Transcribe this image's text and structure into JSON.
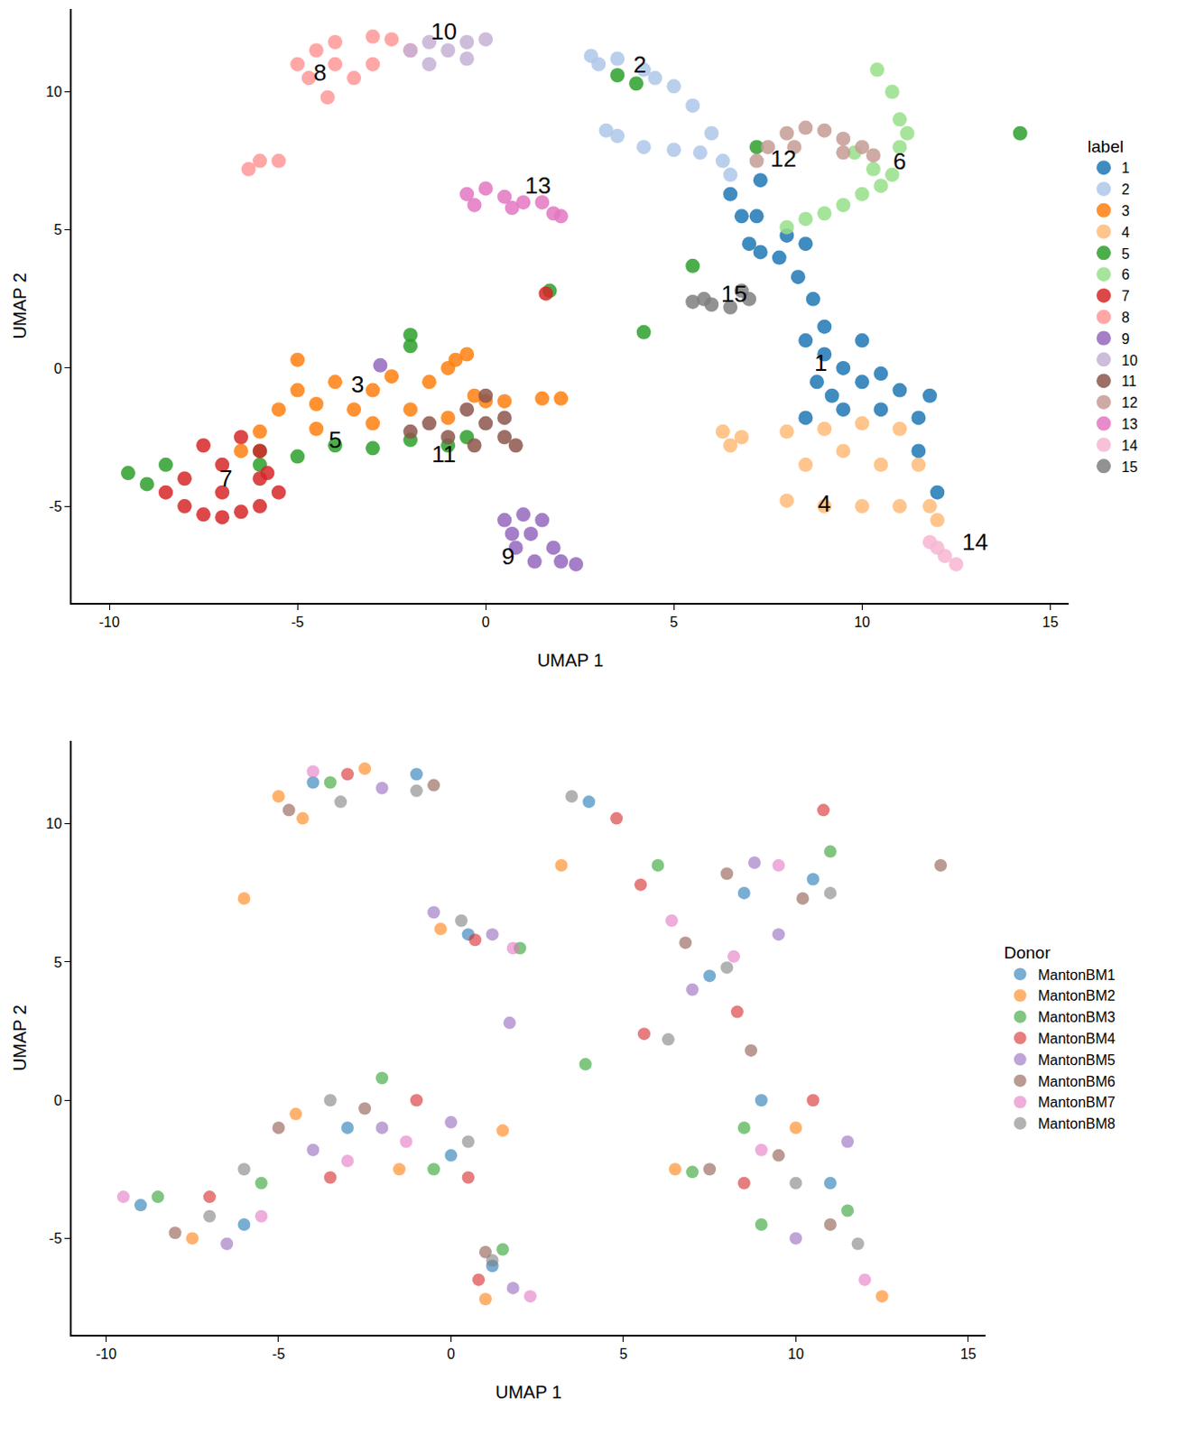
{
  "chart_data": [
    {
      "type": "scatter",
      "x_label": "UMAP 1",
      "y_label": "UMAP 2",
      "legend_title": "label",
      "legend": "right",
      "grid": false,
      "xlim": [
        -11,
        15.5
      ],
      "ylim": [
        -8.5,
        13
      ],
      "xticks": [
        -10,
        -5,
        0,
        5,
        10,
        15
      ],
      "yticks": [
        -5,
        0,
        5,
        10
      ],
      "series": [
        {
          "name": "1",
          "color": "#1f77b4",
          "x": [
            8.5,
            9,
            9.5,
            10,
            11,
            11.8,
            8.8,
            9.5,
            10.5,
            11.5,
            8.5,
            10,
            9,
            8.7,
            8.3,
            7.8,
            7.3,
            7,
            8,
            8.5,
            6.8,
            6.5,
            7.3,
            7.2,
            11.5,
            12,
            10.5,
            9.2
          ],
          "y": [
            1,
            0.5,
            0,
            -0.5,
            -0.8,
            -1,
            -0.5,
            -1.5,
            -1.5,
            -1.8,
            -1.8,
            1,
            1.5,
            2.5,
            3.3,
            4,
            4.2,
            4.5,
            4.8,
            4.5,
            5.5,
            6.3,
            6.8,
            5.5,
            -3,
            -4.5,
            -0.2,
            -1
          ]
        },
        {
          "name": "2",
          "color": "#aec7e8",
          "x": [
            3,
            3.5,
            4.2,
            5,
            5.5,
            6,
            6.3,
            3.5,
            4.2,
            5,
            5.7,
            3.2,
            4.5,
            2.8,
            6.5
          ],
          "y": [
            11,
            11.2,
            10.8,
            10.2,
            9.5,
            8.5,
            7.5,
            8.4,
            8,
            7.9,
            7.8,
            8.6,
            10.5,
            11.3,
            7
          ]
        },
        {
          "name": "3",
          "color": "#ff7f0e",
          "x": [
            -6,
            -5.5,
            -5,
            -5,
            -4.5,
            -4,
            -3.5,
            -3,
            -2.5,
            -2,
            -1.5,
            -1,
            -0.5,
            -0.3,
            0,
            0.5,
            1.5,
            2,
            -1,
            -3,
            -4.5,
            -6.5,
            -0.8
          ],
          "y": [
            -2.3,
            -1.5,
            -0.8,
            0.3,
            -1.3,
            -0.5,
            -1.5,
            -0.8,
            -0.3,
            -1.5,
            -0.5,
            0,
            0.5,
            -1,
            -1.2,
            -1.2,
            -1.1,
            -1.1,
            -1.8,
            -2,
            -2.2,
            -3,
            0.3
          ]
        },
        {
          "name": "4",
          "color": "#ffbb78",
          "x": [
            8,
            9,
            10,
            11,
            11.8,
            8.5,
            9.5,
            10.5,
            11.5,
            8,
            9,
            10,
            11,
            12,
            6.3,
            6.8,
            6.5
          ],
          "y": [
            -4.8,
            -5,
            -5,
            -5,
            -5,
            -3.5,
            -3,
            -3.5,
            -3.5,
            -2.3,
            -2.2,
            -2,
            -2.2,
            -5.5,
            -2.3,
            -2.5,
            -2.8
          ]
        },
        {
          "name": "5",
          "color": "#2ca02c",
          "x": [
            -9.5,
            -8.5,
            -6,
            -5,
            -4,
            -3,
            -2,
            -1,
            -0.5,
            -2,
            -2,
            3.5,
            4,
            4.2,
            7.2,
            5.5,
            14.2,
            1.7,
            -6,
            -9
          ],
          "y": [
            -3.8,
            -3.5,
            -3,
            -3.2,
            -2.8,
            -2.9,
            -2.6,
            -2.8,
            -2.5,
            0.8,
            1.2,
            10.6,
            10.3,
            1.3,
            8,
            3.7,
            8.5,
            2.8,
            -3.5,
            -4.2
          ]
        },
        {
          "name": "6",
          "color": "#98df8a",
          "x": [
            8,
            9,
            10,
            10.8,
            11,
            11,
            10.8,
            10.4,
            9.5,
            10.5,
            11.2,
            8.5,
            9.8,
            10.3
          ],
          "y": [
            5.1,
            5.6,
            6.3,
            7,
            8,
            9,
            10,
            10.8,
            5.9,
            6.6,
            8.5,
            5.4,
            7.8,
            7.2
          ]
        },
        {
          "name": "7",
          "color": "#d62728",
          "x": [
            -8.5,
            -8,
            -7.5,
            -7,
            -6.5,
            -6,
            -5.5,
            -6,
            -7,
            -7,
            -6.5,
            -6,
            -8,
            -7.5,
            -5.8,
            1.6
          ],
          "y": [
            -4.5,
            -5,
            -5.3,
            -5.4,
            -5.2,
            -5,
            -4.5,
            -4,
            -4.5,
            -3.5,
            -2.5,
            -3,
            -4,
            -2.8,
            -3.8,
            2.7
          ]
        },
        {
          "name": "8",
          "color": "#ff9896",
          "x": [
            -5,
            -4.5,
            -4,
            -3,
            -2.5,
            -4.7,
            -4.2,
            -3.5,
            -3,
            -2,
            -4,
            -6.3,
            -6,
            -5.5
          ],
          "y": [
            11,
            11.5,
            11.8,
            12,
            11.9,
            10.5,
            9.8,
            10.5,
            11,
            11.5,
            11,
            7.2,
            7.5,
            7.5
          ]
        },
        {
          "name": "9",
          "color": "#9467bd",
          "x": [
            0.5,
            1,
            1.5,
            1.2,
            0.8,
            1.3,
            1.8,
            2,
            2.4,
            0.7,
            -2.8
          ],
          "y": [
            -5.5,
            -5.3,
            -5.5,
            -6,
            -6.5,
            -7,
            -6.5,
            -7,
            -7.1,
            -6,
            0.1
          ]
        },
        {
          "name": "10",
          "color": "#c5b0d5",
          "x": [
            -1.5,
            -1,
            -0.5,
            0,
            -1.5,
            -2,
            -0.5
          ],
          "y": [
            11.8,
            11.5,
            11.8,
            11.9,
            11,
            11.5,
            11.2
          ]
        },
        {
          "name": "11",
          "color": "#8c564b",
          "x": [
            -2,
            -1.5,
            -1,
            -0.5,
            0,
            0.5,
            0.8,
            0,
            -0.3,
            0.5
          ],
          "y": [
            -2.3,
            -2,
            -2.5,
            -1.5,
            -2,
            -2.5,
            -2.8,
            -1,
            -2.8,
            -1.8
          ]
        },
        {
          "name": "12",
          "color": "#c49c94",
          "x": [
            7.5,
            8,
            8.5,
            9,
            9.5,
            10,
            10.3,
            8.2,
            9.5,
            7.2
          ],
          "y": [
            8,
            8.5,
            8.7,
            8.6,
            8.3,
            8,
            7.7,
            8,
            7.8,
            7.5
          ]
        },
        {
          "name": "13",
          "color": "#e377c2",
          "x": [
            -0.5,
            0,
            0.5,
            1,
            1.5,
            -0.3,
            0.7,
            2,
            1.8
          ],
          "y": [
            6.3,
            6.5,
            6.2,
            6,
            6,
            5.9,
            5.8,
            5.5,
            5.6
          ]
        },
        {
          "name": "14",
          "color": "#f7b6d2",
          "x": [
            11.8,
            12.2,
            12.5,
            12
          ],
          "y": [
            -6.3,
            -6.8,
            -7.1,
            -6.5
          ]
        },
        {
          "name": "15",
          "color": "#7f7f7f",
          "x": [
            5.5,
            6,
            6.5,
            7,
            6.8,
            5.8
          ],
          "y": [
            2.4,
            2.3,
            2.2,
            2.5,
            2.8,
            2.5
          ]
        }
      ],
      "annotations": [
        {
          "text": "1",
          "x": 8.9,
          "y": 0.2
        },
        {
          "text": "2",
          "x": 4.1,
          "y": 11
        },
        {
          "text": "3",
          "x": -3.4,
          "y": -0.6
        },
        {
          "text": "4",
          "x": 9,
          "y": -4.9
        },
        {
          "text": "5",
          "x": -4,
          "y": -2.6
        },
        {
          "text": "6",
          "x": 11,
          "y": 7.5
        },
        {
          "text": "7",
          "x": -6.9,
          "y": -4
        },
        {
          "text": "8",
          "x": -4.4,
          "y": 10.7
        },
        {
          "text": "9",
          "x": 0.6,
          "y": -6.8
        },
        {
          "text": "10",
          "x": -1.1,
          "y": 12.2
        },
        {
          "text": "11",
          "x": -1.1,
          "y": -3.1
        },
        {
          "text": "12",
          "x": 7.9,
          "y": 7.6
        },
        {
          "text": "13",
          "x": 1.4,
          "y": 6.6
        },
        {
          "text": "14",
          "x": 13,
          "y": -6.3
        },
        {
          "text": "15",
          "x": 6.6,
          "y": 2.7
        }
      ]
    },
    {
      "type": "scatter",
      "x_label": "UMAP 1",
      "y_label": "UMAP 2",
      "legend_title": "Donor",
      "legend": "right",
      "grid": false,
      "xlim": [
        -11,
        15.5
      ],
      "ylim": [
        -8.5,
        13
      ],
      "xticks": [
        -10,
        -5,
        0,
        5,
        10,
        15
      ],
      "yticks": [
        -5,
        0,
        5,
        10
      ],
      "series": [
        {
          "name": "MantonBM1",
          "color": "#1f77b4",
          "x": [
            -9,
            -6,
            -3,
            0,
            -4,
            -1,
            0.5,
            1.2,
            9,
            11,
            4,
            8.5,
            10.5,
            7.5
          ],
          "y": [
            -3.8,
            -4.5,
            -1,
            -2,
            11.5,
            11.8,
            6,
            -6,
            0,
            -3,
            10.8,
            7.5,
            8,
            4.5
          ]
        },
        {
          "name": "MantonBM2",
          "color": "#ff7f0e",
          "x": [
            -7.5,
            -4.5,
            -1.5,
            1.5,
            -5,
            -2.5,
            -0.3,
            1,
            10,
            12.5,
            3.2,
            6.5,
            -6,
            -4.3
          ],
          "y": [
            -5,
            -0.5,
            -2.5,
            -1.1,
            11,
            12,
            6.2,
            -7.2,
            -1,
            -7.1,
            8.5,
            -2.5,
            7.3,
            10.2
          ]
        },
        {
          "name": "MantonBM3",
          "color": "#2ca02c",
          "x": [
            -8.5,
            -5.5,
            -2,
            -0.5,
            -3.5,
            2,
            1.5,
            8.5,
            11.5,
            9,
            6,
            11,
            7,
            3.9
          ],
          "y": [
            -3.5,
            -3,
            0.8,
            -2.5,
            11.5,
            5.5,
            -5.4,
            -1,
            -4,
            -4.5,
            8.5,
            9,
            -2.6,
            1.3
          ]
        },
        {
          "name": "MantonBM4",
          "color": "#d62728",
          "x": [
            -7,
            -3.5,
            -1,
            0.5,
            -3,
            0.7,
            0.8,
            10.5,
            8.5,
            4.8,
            5.5,
            10.8,
            8.3,
            5.6
          ],
          "y": [
            -3.5,
            -2.8,
            0,
            -2.8,
            11.8,
            5.8,
            -6.5,
            0,
            -3,
            10.2,
            7.8,
            10.5,
            3.2,
            2.4
          ]
        },
        {
          "name": "MantonBM5",
          "color": "#9467bd",
          "x": [
            -6.5,
            -4,
            -2,
            0,
            -2,
            1.2,
            1.8,
            11.5,
            10,
            8.8,
            9.5,
            7,
            1.7,
            -0.5
          ],
          "y": [
            -5.2,
            -1.8,
            -1,
            -0.8,
            11.3,
            6,
            -6.8,
            -1.5,
            -5,
            8.6,
            6,
            4,
            2.8,
            6.8
          ]
        },
        {
          "name": "MantonBM6",
          "color": "#8c564b",
          "x": [
            -8,
            -5,
            -2.5,
            -4.7,
            -0.5,
            1,
            9.5,
            11,
            8,
            10.2,
            7.5,
            6.8,
            8.7,
            14.2
          ],
          "y": [
            -4.8,
            -1,
            -0.3,
            10.5,
            11.4,
            -5.5,
            -2,
            -4.5,
            8.2,
            7.3,
            -2.5,
            5.7,
            1.8,
            8.5
          ]
        },
        {
          "name": "MantonBM7",
          "color": "#e377c2",
          "x": [
            -9.5,
            -5.5,
            -3,
            -1.3,
            -4,
            1.8,
            2.3,
            9,
            12,
            9.5,
            8.2,
            6.4
          ],
          "y": [
            -3.5,
            -4.2,
            -2.2,
            -1.5,
            11.9,
            5.5,
            -7.1,
            -1.8,
            -6.5,
            8.5,
            5.2,
            6.5
          ]
        },
        {
          "name": "MantonBM8",
          "color": "#7f7f7f",
          "x": [
            -7,
            -6,
            -3.5,
            0.5,
            -3.2,
            -1,
            0.3,
            1.2,
            10,
            11.8,
            3.5,
            11,
            8,
            6.3
          ],
          "y": [
            -4.2,
            -2.5,
            0,
            -1.5,
            10.8,
            11.2,
            6.5,
            -5.8,
            -3,
            -5.2,
            11,
            7.5,
            4.8,
            2.2
          ]
        }
      ]
    }
  ]
}
